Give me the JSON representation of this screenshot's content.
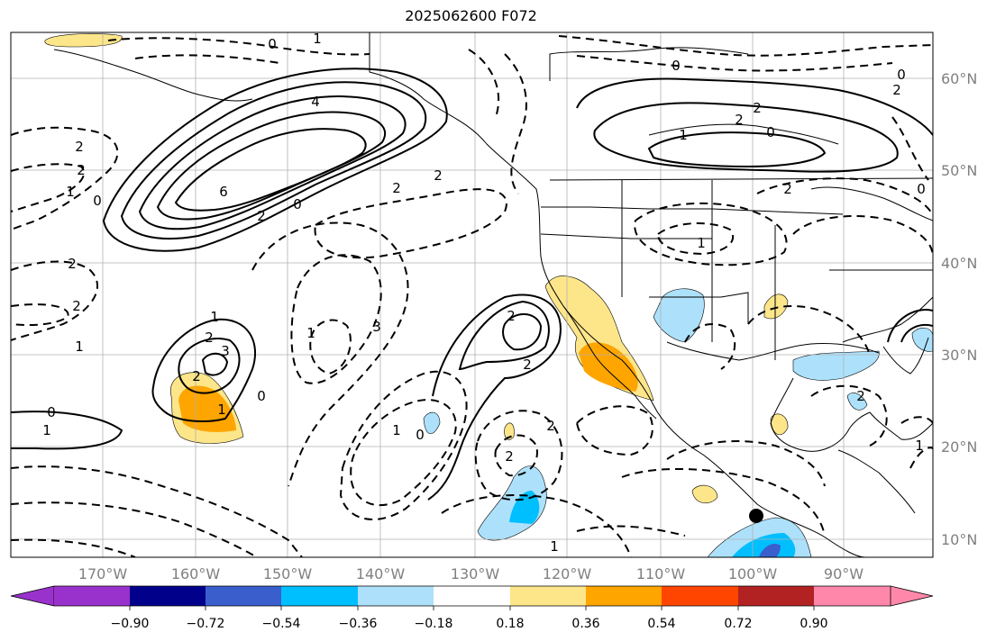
{
  "title": "2025062600 F072",
  "map": {
    "lon_labels": [
      "170°W",
      "160°W",
      "150°W",
      "140°W",
      "130°W",
      "120°W",
      "110°W",
      "100°W",
      "90°W"
    ],
    "lat_labels": [
      "60°N",
      "50°N",
      "40°N",
      "30°N",
      "20°N",
      "10°N"
    ],
    "contour_labels": [
      "0",
      "1",
      "1",
      "3",
      "2",
      "2",
      "1",
      "6",
      "4",
      "2",
      "0",
      "2",
      "2",
      "2",
      "1",
      "0",
      "2",
      "2",
      "0",
      "2",
      "1",
      "0",
      "2",
      "2",
      "1",
      "0",
      "1",
      "3",
      "2",
      "2",
      "1",
      "0",
      "2",
      "1",
      "2",
      "0",
      "1",
      "1",
      "2",
      "1",
      "2",
      "0",
      "0",
      "2",
      "2"
    ],
    "marker": "storm-center-dot"
  },
  "colorbar": {
    "ticks": [
      "−0.90",
      "−0.72",
      "−0.54",
      "−0.36",
      "−0.18",
      "0.18",
      "0.36",
      "0.54",
      "0.72",
      "0.90"
    ],
    "colors": [
      "#9932cc",
      "#00008b",
      "#3a5fcd",
      "#00bfff",
      "#ade1fb",
      "#ffffff",
      "#fde68a",
      "#ffa500",
      "#ff4500",
      "#b22222",
      "#ff88aa"
    ]
  }
}
